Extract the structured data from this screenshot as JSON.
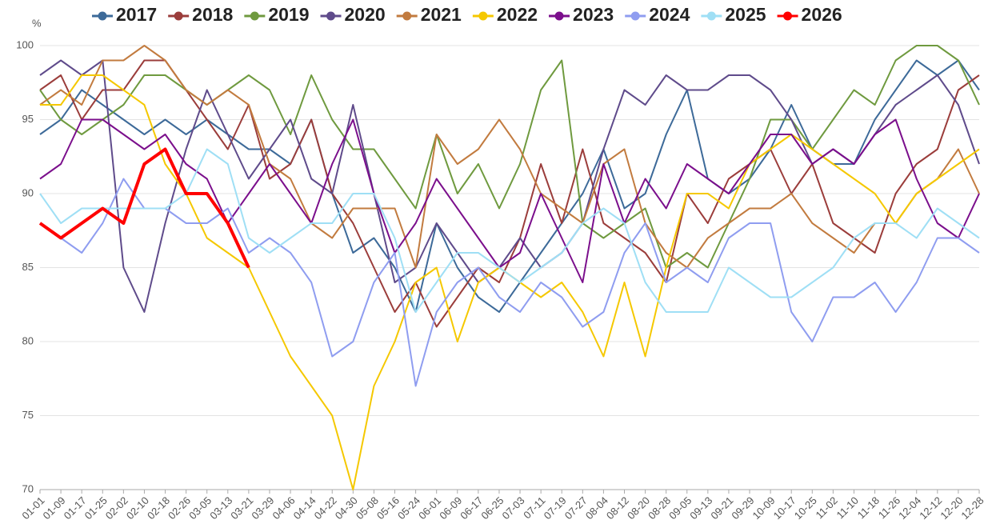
{
  "chart_data": {
    "type": "line",
    "y_label": "%",
    "categories": [
      "01-01",
      "01-09",
      "01-17",
      "01-25",
      "02-02",
      "02-10",
      "02-18",
      "02-26",
      "03-05",
      "03-13",
      "03-21",
      "03-29",
      "04-06",
      "04-14",
      "04-22",
      "04-30",
      "05-08",
      "05-16",
      "05-24",
      "06-01",
      "06-09",
      "06-17",
      "06-25",
      "07-03",
      "07-11",
      "07-19",
      "07-27",
      "08-04",
      "08-12",
      "08-20",
      "08-28",
      "09-05",
      "09-13",
      "09-21",
      "09-29",
      "10-09",
      "10-17",
      "10-25",
      "11-02",
      "11-10",
      "11-18",
      "11-26",
      "12-04",
      "12-12",
      "12-20",
      "12-28"
    ],
    "ylim": [
      70,
      100
    ],
    "yticks": [
      70,
      75,
      80,
      85,
      90,
      95,
      100
    ],
    "grid": true,
    "series": [
      {
        "name": "2017",
        "color": "#3d6a99",
        "values": [
          94,
          95,
          97,
          96,
          95,
          94,
          95,
          94,
          95,
          94,
          93,
          93,
          92,
          95,
          90,
          86,
          87,
          85,
          82,
          88,
          85,
          83,
          82,
          84,
          86,
          88,
          90,
          93,
          89,
          90,
          94,
          97,
          91,
          90,
          91,
          93,
          96,
          93,
          92,
          92,
          95,
          97,
          99,
          98,
          99,
          97
        ]
      },
      {
        "name": "2018",
        "color": "#9b3d3b",
        "values": [
          97,
          98,
          95,
          97,
          97,
          99,
          99,
          97,
          95,
          93,
          96,
          91,
          92,
          95,
          90,
          88,
          85,
          82,
          84,
          81,
          83,
          85,
          84,
          87,
          92,
          88,
          93,
          88,
          87,
          86,
          84,
          90,
          88,
          91,
          92,
          93,
          90,
          92,
          88,
          87,
          86,
          90,
          92,
          93,
          97,
          98
        ]
      },
      {
        "name": "2019",
        "color": "#6f9a3f",
        "values": [
          97,
          95,
          94,
          95,
          96,
          98,
          98,
          97,
          96,
          97,
          98,
          97,
          94,
          98,
          95,
          93,
          93,
          91,
          89,
          94,
          90,
          92,
          89,
          92,
          97,
          99,
          88,
          87,
          88,
          89,
          85,
          86,
          85,
          88,
          91,
          95,
          95,
          93,
          95,
          97,
          96,
          99,
          100,
          100,
          99,
          96
        ]
      },
      {
        "name": "2020",
        "color": "#5f4b8b",
        "values": [
          98,
          99,
          98,
          99,
          85,
          82,
          88,
          93,
          97,
          94,
          91,
          93,
          95,
          91,
          90,
          96,
          90,
          84,
          85,
          88,
          86,
          84,
          85,
          87,
          85,
          86,
          88,
          93,
          97,
          96,
          98,
          97,
          97,
          98,
          98,
          97,
          95,
          92,
          93,
          92,
          94,
          96,
          97,
          98,
          96,
          92
        ]
      },
      {
        "name": "2021",
        "color": "#c27b3f",
        "values": [
          96,
          97,
          96,
          99,
          99,
          100,
          99,
          97,
          96,
          97,
          96,
          92,
          91,
          88,
          87,
          89,
          89,
          89,
          85,
          94,
          92,
          93,
          95,
          93,
          90,
          89,
          88,
          92,
          93,
          88,
          86,
          85,
          87,
          88,
          89,
          89,
          90,
          88,
          87,
          86,
          88,
          88,
          90,
          91,
          93,
          90
        ]
      },
      {
        "name": "2022",
        "color": "#f5c800",
        "values": [
          96,
          96,
          98,
          98,
          97,
          96,
          92,
          90,
          87,
          86,
          85,
          82,
          79,
          77,
          75,
          70,
          77,
          80,
          84,
          85,
          80,
          84,
          85,
          84,
          83,
          84,
          82,
          79,
          84,
          79,
          85,
          90,
          90,
          89,
          92,
          93,
          94,
          93,
          92,
          91,
          90,
          88,
          90,
          91,
          92,
          93
        ]
      },
      {
        "name": "2023",
        "color": "#7b0f8c",
        "values": [
          91,
          92,
          95,
          95,
          94,
          93,
          94,
          92,
          91,
          88,
          90,
          92,
          90,
          88,
          92,
          95,
          90,
          86,
          88,
          91,
          89,
          87,
          85,
          86,
          90,
          87,
          84,
          92,
          88,
          91,
          89,
          92,
          91,
          90,
          92,
          94,
          94,
          92,
          93,
          92,
          94,
          95,
          91,
          88,
          87,
          90
        ]
      },
      {
        "name": "2024",
        "color": "#8f9df0",
        "values": [
          88,
          87,
          86,
          88,
          91,
          89,
          89,
          88,
          88,
          89,
          86,
          87,
          86,
          84,
          79,
          80,
          84,
          86,
          77,
          82,
          84,
          85,
          83,
          82,
          84,
          83,
          81,
          82,
          86,
          88,
          84,
          85,
          84,
          87,
          88,
          88,
          82,
          80,
          83,
          83,
          84,
          82,
          84,
          87,
          87,
          86
        ]
      },
      {
        "name": "2025",
        "color": "#9fdff5",
        "values": [
          90,
          88,
          89,
          89,
          89,
          89,
          89,
          90,
          93,
          92,
          87,
          86,
          87,
          88,
          88,
          90,
          90,
          87,
          82,
          84,
          86,
          86,
          85,
          84,
          85,
          86,
          88,
          89,
          88,
          84,
          82,
          82,
          82,
          85,
          84,
          83,
          83,
          84,
          85,
          87,
          88,
          88,
          87,
          89,
          88,
          87
        ]
      },
      {
        "name": "2026",
        "color": "#ff0000",
        "width": 4,
        "values": [
          88,
          87,
          88,
          89,
          88,
          92,
          93,
          90,
          90,
          88,
          85,
          null,
          null,
          null,
          null,
          null,
          null,
          null,
          null,
          null,
          null,
          null,
          null,
          null,
          null,
          null,
          null,
          null,
          null,
          null,
          null,
          null,
          null,
          null,
          null,
          null,
          null,
          null,
          null,
          null,
          null,
          null,
          null,
          null,
          null,
          null
        ]
      }
    ]
  }
}
